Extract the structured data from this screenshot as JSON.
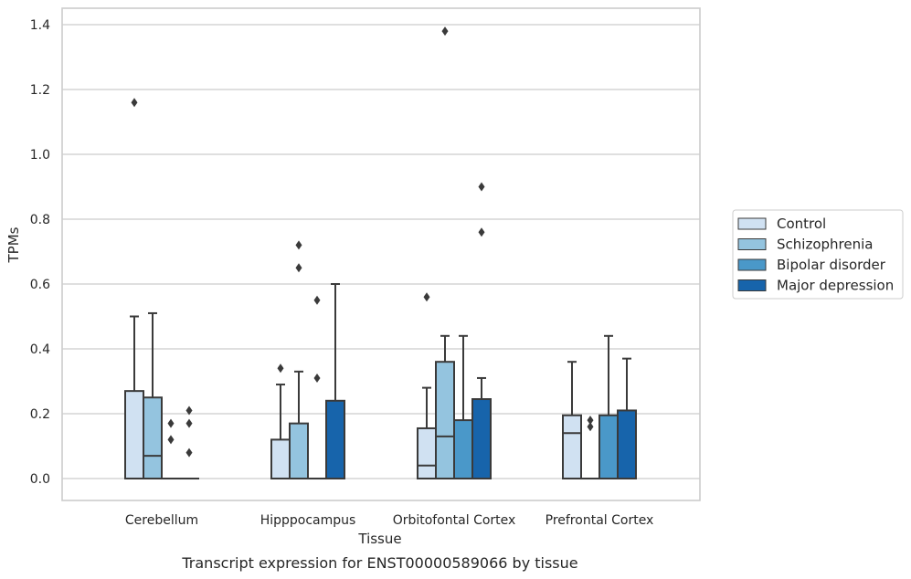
{
  "chart_data": {
    "type": "boxplot",
    "title": "",
    "caption": "Transcript expression for ENST00000589066 by tissue",
    "xlabel": "Tissue",
    "ylabel": "TPMs",
    "ylim": [
      -0.07,
      1.45
    ],
    "yticks": [
      0.0,
      0.2,
      0.4,
      0.6,
      0.8,
      1.0,
      1.2,
      1.4
    ],
    "ytick_labels": [
      "0.0",
      "0.2",
      "0.4",
      "0.6",
      "0.8",
      "1.0",
      "1.2",
      "1.4"
    ],
    "grid": true,
    "legend_position": "right",
    "categories": [
      "Cerebellum",
      "Hipppocampus",
      "Orbitofontal Cortex",
      "Prefrontal Cortex"
    ],
    "series": [
      {
        "name": "Control",
        "color": "#d0e1f2",
        "boxes": [
          {
            "q1": 0.0,
            "median": 0.0,
            "q3": 0.27,
            "whisker_low": 0.0,
            "whisker_high": 0.5,
            "outliers": [
              1.16
            ]
          },
          {
            "q1": 0.0,
            "median": 0.0,
            "q3": 0.12,
            "whisker_low": 0.0,
            "whisker_high": 0.29,
            "outliers": [
              0.34
            ]
          },
          {
            "q1": 0.0,
            "median": 0.04,
            "q3": 0.155,
            "whisker_low": 0.0,
            "whisker_high": 0.28,
            "outliers": [
              0.56
            ]
          },
          {
            "q1": 0.0,
            "median": 0.14,
            "q3": 0.195,
            "whisker_low": 0.0,
            "whisker_high": 0.36,
            "outliers": []
          }
        ]
      },
      {
        "name": "Schizophrenia",
        "color": "#94c4df",
        "boxes": [
          {
            "q1": 0.0,
            "median": 0.07,
            "q3": 0.25,
            "whisker_low": 0.0,
            "whisker_high": 0.51,
            "outliers": []
          },
          {
            "q1": 0.0,
            "median": 0.0,
            "q3": 0.17,
            "whisker_low": 0.0,
            "whisker_high": 0.33,
            "outliers": [
              0.72,
              0.65
            ]
          },
          {
            "q1": 0.0,
            "median": 0.13,
            "q3": 0.36,
            "whisker_low": 0.0,
            "whisker_high": 0.44,
            "outliers": [
              1.38
            ]
          },
          {
            "q1": 0.0,
            "median": 0.0,
            "q3": 0.0,
            "whisker_low": 0.0,
            "whisker_high": 0.0,
            "outliers": [
              0.18,
              0.16
            ]
          }
        ]
      },
      {
        "name": "Bipolar disorder",
        "color": "#4a98c9",
        "boxes": [
          {
            "q1": 0.0,
            "median": 0.0,
            "q3": 0.0,
            "whisker_low": 0.0,
            "whisker_high": 0.0,
            "outliers": [
              0.17,
              0.12
            ]
          },
          {
            "q1": 0.0,
            "median": 0.0,
            "q3": 0.0,
            "whisker_low": 0.0,
            "whisker_high": 0.0,
            "outliers": [
              0.55,
              0.31
            ]
          },
          {
            "q1": 0.0,
            "median": 0.0,
            "q3": 0.18,
            "whisker_low": 0.0,
            "whisker_high": 0.44,
            "outliers": []
          },
          {
            "q1": 0.0,
            "median": 0.0,
            "q3": 0.195,
            "whisker_low": 0.0,
            "whisker_high": 0.44,
            "outliers": []
          }
        ]
      },
      {
        "name": "Major depression",
        "color": "#1764ab",
        "boxes": [
          {
            "q1": 0.0,
            "median": 0.0,
            "q3": 0.0,
            "whisker_low": 0.0,
            "whisker_high": 0.0,
            "outliers": [
              0.21,
              0.17,
              0.08
            ]
          },
          {
            "q1": 0.0,
            "median": 0.0,
            "q3": 0.24,
            "whisker_low": 0.0,
            "whisker_high": 0.6,
            "outliers": []
          },
          {
            "q1": 0.0,
            "median": 0.0,
            "q3": 0.245,
            "whisker_low": 0.0,
            "whisker_high": 0.31,
            "outliers": [
              0.9,
              0.76
            ]
          },
          {
            "q1": 0.0,
            "median": 0.0,
            "q3": 0.21,
            "whisker_low": 0.0,
            "whisker_high": 0.37,
            "outliers": []
          }
        ]
      }
    ]
  },
  "style": {
    "edge_color": "#3a3a3a",
    "grid_color": "#cccccc",
    "frame_color": "#cccccc"
  }
}
